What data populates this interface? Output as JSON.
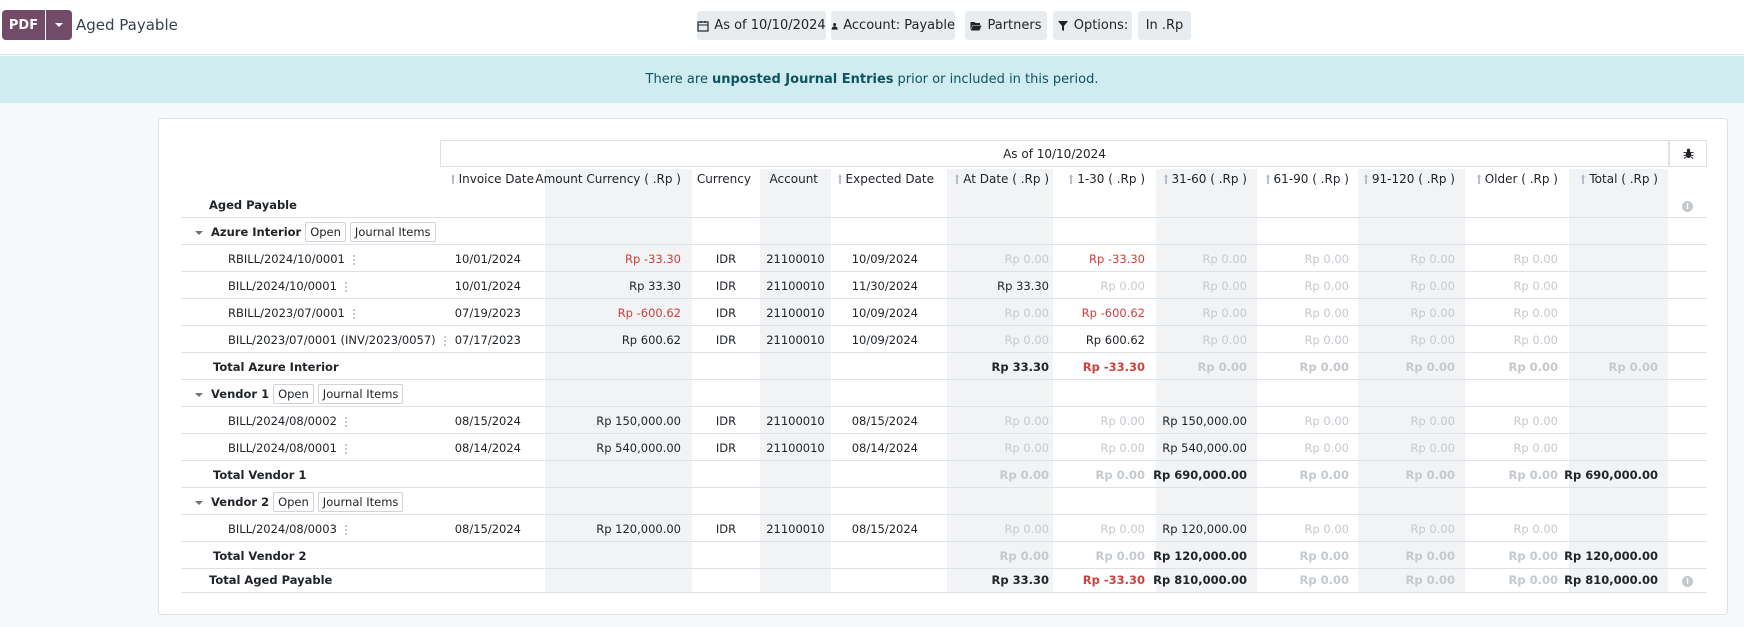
{
  "toolbar": {
    "pdf_label": "PDF",
    "title": "Aged Payable"
  },
  "filters": {
    "as_of": "As of 10/10/2024",
    "account": "Account: Payable",
    "partners": "Partners",
    "options": "Options:",
    "currency": "In .Rp"
  },
  "banner": {
    "pre": "There are",
    "strong": "unposted Journal Entries",
    "post": "prior or included in this period."
  },
  "table": {
    "as_of_header": "As of 10/10/2024",
    "root_label": "Aged Payable",
    "columns": [
      "Invoice Date",
      "Amount Currency ( .Rp )",
      "Currency",
      "Account",
      "Expected Date",
      "At Date ( .Rp )",
      "1-30 ( .Rp )",
      "31-60 ( .Rp )",
      "61-90 ( .Rp )",
      "91-120 ( .Rp )",
      "Older ( .Rp )",
      "Total ( .Rp )"
    ],
    "open_label": "Open",
    "journal_label": "Journal Items",
    "groups": [
      {
        "name": "Azure Interior",
        "lines": [
          {
            "ref": "RBILL/2024/10/0001",
            "date": "10/01/2024",
            "amount": "Rp -33.30",
            "currency": "IDR",
            "account": "21100010",
            "expected": "10/09/2024",
            "b": [
              "Rp 0.00",
              "Rp -33.30",
              "Rp 0.00",
              "Rp 0.00",
              "Rp 0.00",
              "Rp 0.00"
            ]
          },
          {
            "ref": "BILL/2024/10/0001",
            "date": "10/01/2024",
            "amount": "Rp 33.30",
            "currency": "IDR",
            "account": "21100010",
            "expected": "11/30/2024",
            "b": [
              "Rp 33.30",
              "Rp 0.00",
              "Rp 0.00",
              "Rp 0.00",
              "Rp 0.00",
              "Rp 0.00"
            ]
          },
          {
            "ref": "RBILL/2023/07/0001",
            "date": "07/19/2023",
            "amount": "Rp -600.62",
            "currency": "IDR",
            "account": "21100010",
            "expected": "10/09/2024",
            "b": [
              "Rp 0.00",
              "Rp -600.62",
              "Rp 0.00",
              "Rp 0.00",
              "Rp 0.00",
              "Rp 0.00"
            ]
          },
          {
            "ref": "BILL/2023/07/0001 (INV/2023/0057)",
            "date": "07/17/2023",
            "amount": "Rp 600.62",
            "currency": "IDR",
            "account": "21100010",
            "expected": "10/09/2024",
            "b": [
              "Rp 0.00",
              "Rp 600.62",
              "Rp 0.00",
              "Rp 0.00",
              "Rp 0.00",
              "Rp 0.00"
            ]
          }
        ],
        "total_label": "Total Azure Interior",
        "totals": [
          "Rp 33.30",
          "Rp -33.30",
          "Rp 0.00",
          "Rp 0.00",
          "Rp 0.00",
          "Rp 0.00",
          "Rp 0.00"
        ]
      },
      {
        "name": "Vendor 1",
        "lines": [
          {
            "ref": "BILL/2024/08/0002",
            "date": "08/15/2024",
            "amount": "Rp 150,000.00",
            "currency": "IDR",
            "account": "21100010",
            "expected": "08/15/2024",
            "b": [
              "Rp 0.00",
              "Rp 0.00",
              "Rp 150,000.00",
              "Rp 0.00",
              "Rp 0.00",
              "Rp 0.00"
            ]
          },
          {
            "ref": "BILL/2024/08/0001",
            "date": "08/14/2024",
            "amount": "Rp 540,000.00",
            "currency": "IDR",
            "account": "21100010",
            "expected": "08/14/2024",
            "b": [
              "Rp 0.00",
              "Rp 0.00",
              "Rp 540,000.00",
              "Rp 0.00",
              "Rp 0.00",
              "Rp 0.00"
            ]
          }
        ],
        "total_label": "Total Vendor 1",
        "totals": [
          "Rp 0.00",
          "Rp 0.00",
          "Rp 690,000.00",
          "Rp 0.00",
          "Rp 0.00",
          "Rp 0.00",
          "Rp 690,000.00"
        ]
      },
      {
        "name": "Vendor 2",
        "lines": [
          {
            "ref": "BILL/2024/08/0003",
            "date": "08/15/2024",
            "amount": "Rp 120,000.00",
            "currency": "IDR",
            "account": "21100010",
            "expected": "08/15/2024",
            "b": [
              "Rp 0.00",
              "Rp 0.00",
              "Rp 120,000.00",
              "Rp 0.00",
              "Rp 0.00",
              "Rp 0.00"
            ]
          }
        ],
        "total_label": "Total Vendor 2",
        "totals": [
          "Rp 0.00",
          "Rp 0.00",
          "Rp 120,000.00",
          "Rp 0.00",
          "Rp 0.00",
          "Rp 0.00",
          "Rp 120,000.00"
        ]
      }
    ],
    "grand_total_label": "Total Aged Payable",
    "grand_totals": [
      "Rp 33.30",
      "Rp -33.30",
      "Rp 810,000.00",
      "Rp 0.00",
      "Rp 0.00",
      "Rp 0.00",
      "Rp 810,000.00"
    ]
  },
  "colors": {
    "brand": "#714b67",
    "banner_bg": "#d1ecf1",
    "negative": "#d23f3a",
    "zero": "#c5c9ce"
  }
}
